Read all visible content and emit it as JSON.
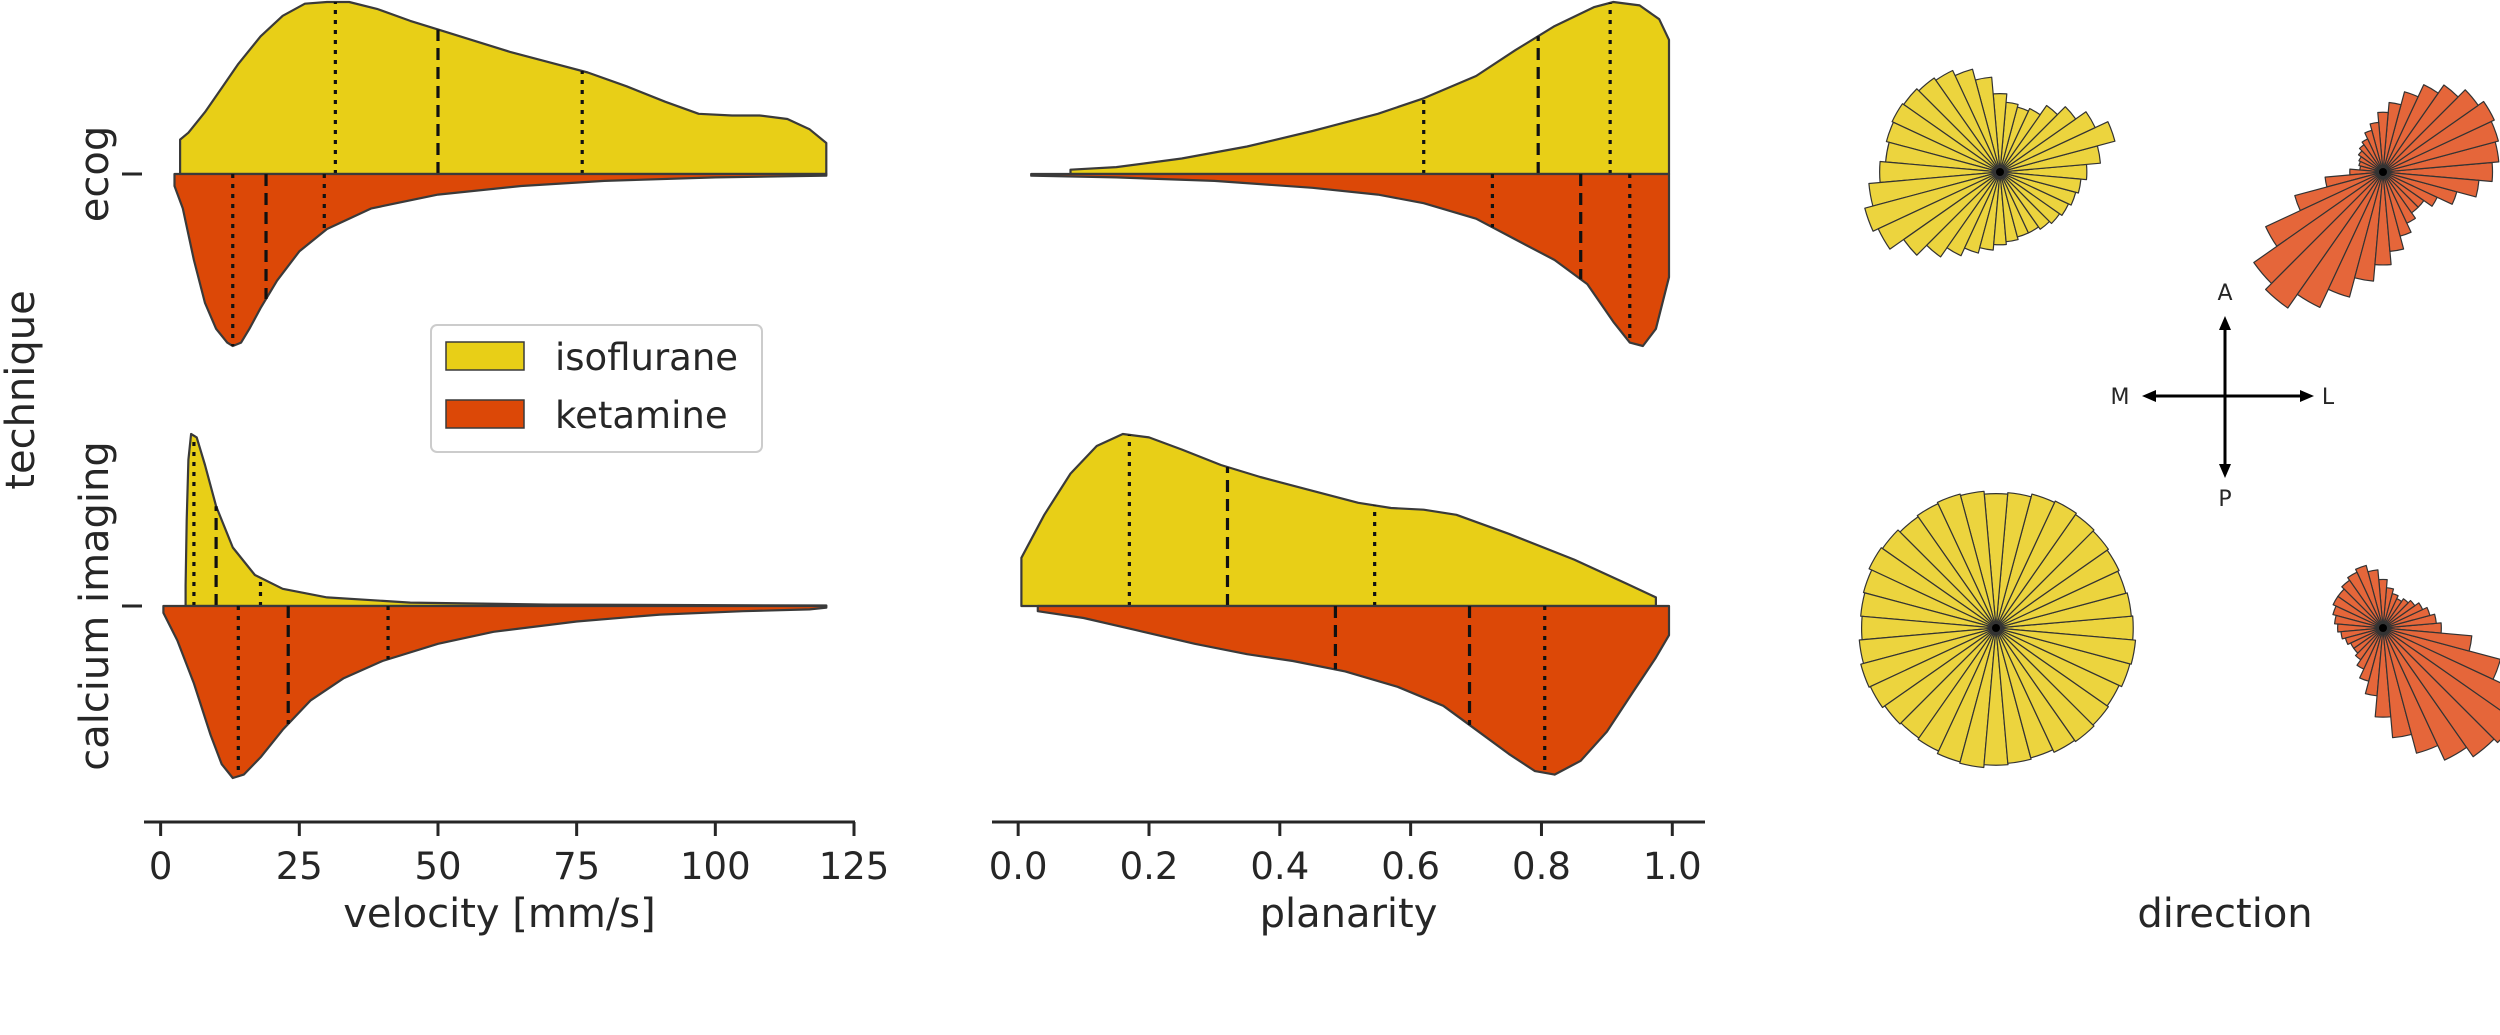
{
  "colors": {
    "isoflurane": "#e8cf17",
    "ketamine": "#dc4807",
    "isoflurane_rose": "#ecd43e",
    "ketamine_rose": "#e5663a",
    "outline": "#3a3a3a",
    "axis": "#262626"
  },
  "y_axis": {
    "label": "technique",
    "categories": [
      "ecog",
      "calcium imaging"
    ]
  },
  "legend": {
    "placement": "center-left of first panel",
    "entries": [
      {
        "key": "isoflurane",
        "label": "isoflurane"
      },
      {
        "key": "ketamine",
        "label": "ketamine"
      }
    ]
  },
  "direction_panel": {
    "xlabel": "direction",
    "compass": {
      "anterior": "A",
      "posterior": "P",
      "medial": "M",
      "lateral": "L"
    }
  },
  "chart_data": [
    {
      "type": "violin",
      "subtype": "split",
      "xlabel": "velocity [mm/s]",
      "xlim": [
        -3,
        125
      ],
      "xticks": [
        0,
        25,
        50,
        75,
        100,
        125
      ],
      "xticklabels": [
        "0",
        "25",
        "50",
        "75",
        "100",
        "125"
      ],
      "rows": [
        {
          "category": "ecog",
          "isoflurane": {
            "density": [
              [
                3.5,
                0
              ],
              [
                3.5,
                0.2
              ],
              [
                5,
                0.24
              ],
              [
                8,
                0.36
              ],
              [
                11,
                0.5
              ],
              [
                14,
                0.64
              ],
              [
                18,
                0.8
              ],
              [
                22,
                0.92
              ],
              [
                26,
                0.99
              ],
              [
                30,
                1.0
              ],
              [
                34,
                1.0
              ],
              [
                39,
                0.96
              ],
              [
                45,
                0.89
              ],
              [
                51,
                0.83
              ],
              [
                57,
                0.77
              ],
              [
                63,
                0.71
              ],
              [
                70,
                0.65
              ],
              [
                77,
                0.59
              ],
              [
                84,
                0.51
              ],
              [
                91,
                0.42
              ],
              [
                97,
                0.35
              ],
              [
                103,
                0.34
              ],
              [
                108,
                0.34
              ],
              [
                113,
                0.32
              ],
              [
                117,
                0.26
              ],
              [
                120,
                0.18
              ],
              [
                120,
                0
              ]
            ],
            "quartiles": [
              [
                31.5,
                "dotted"
              ],
              [
                50,
                "dashed"
              ],
              [
                76,
                "dotted"
              ]
            ]
          },
          "ketamine": {
            "density": [
              [
                2.5,
                0
              ],
              [
                2.5,
                0.07
              ],
              [
                4,
                0.2
              ],
              [
                6,
                0.5
              ],
              [
                8,
                0.75
              ],
              [
                10,
                0.9
              ],
              [
                12,
                0.98
              ],
              [
                13,
                1.0
              ],
              [
                14.5,
                0.98
              ],
              [
                16,
                0.9
              ],
              [
                18,
                0.78
              ],
              [
                21,
                0.62
              ],
              [
                25,
                0.45
              ],
              [
                30,
                0.32
              ],
              [
                38,
                0.2
              ],
              [
                50,
                0.12
              ],
              [
                65,
                0.07
              ],
              [
                80,
                0.04
              ],
              [
                100,
                0.02
              ],
              [
                120,
                0.01
              ],
              [
                120,
                0
              ]
            ],
            "quartiles": [
              [
                13,
                "dotted"
              ],
              [
                19,
                "dashed"
              ],
              [
                29.5,
                "dotted"
              ]
            ]
          }
        },
        {
          "category": "calcium imaging",
          "isoflurane": {
            "density": [
              [
                4.5,
                0
              ],
              [
                4.5,
                0.12
              ],
              [
                4.7,
                0.5
              ],
              [
                5,
                0.85
              ],
              [
                5.5,
                1.0
              ],
              [
                6.5,
                0.98
              ],
              [
                8,
                0.82
              ],
              [
                10,
                0.58
              ],
              [
                13,
                0.34
              ],
              [
                17,
                0.18
              ],
              [
                22,
                0.1
              ],
              [
                30,
                0.05
              ],
              [
                45,
                0.02
              ],
              [
                70,
                0.008
              ],
              [
                120,
                0.003
              ],
              [
                120,
                0
              ]
            ],
            "quartiles": [
              [
                6,
                "dotted"
              ],
              [
                10,
                "dashed"
              ],
              [
                18,
                "dotted"
              ]
            ]
          },
          "ketamine": {
            "density": [
              [
                0.5,
                0
              ],
              [
                0.5,
                0.04
              ],
              [
                3,
                0.2
              ],
              [
                6,
                0.45
              ],
              [
                9,
                0.75
              ],
              [
                11,
                0.92
              ],
              [
                13,
                1.0
              ],
              [
                15,
                0.98
              ],
              [
                18,
                0.88
              ],
              [
                22,
                0.72
              ],
              [
                27,
                0.55
              ],
              [
                33,
                0.42
              ],
              [
                40,
                0.32
              ],
              [
                50,
                0.22
              ],
              [
                60,
                0.15
              ],
              [
                75,
                0.09
              ],
              [
                90,
                0.05
              ],
              [
                105,
                0.03
              ],
              [
                117,
                0.02
              ],
              [
                120,
                0.01
              ],
              [
                120,
                0
              ]
            ],
            "quartiles": [
              [
                14,
                "dotted"
              ],
              [
                23,
                "dashed"
              ],
              [
                41,
                "dotted"
              ]
            ]
          }
        }
      ]
    },
    {
      "type": "violin",
      "subtype": "split",
      "xlabel": "planarity",
      "xlim": [
        -0.04,
        1.05
      ],
      "xticks": [
        0.0,
        0.2,
        0.4,
        0.6,
        0.8,
        1.0
      ],
      "xticklabels": [
        "0.0",
        "0.2",
        "0.4",
        "0.6",
        "0.8",
        "1.0"
      ],
      "rows": [
        {
          "category": "ecog",
          "isoflurane": {
            "density": [
              [
                0.08,
                0
              ],
              [
                0.08,
                0.025
              ],
              [
                0.15,
                0.04
              ],
              [
                0.25,
                0.09
              ],
              [
                0.35,
                0.16
              ],
              [
                0.45,
                0.25
              ],
              [
                0.55,
                0.35
              ],
              [
                0.62,
                0.44
              ],
              [
                0.7,
                0.57
              ],
              [
                0.76,
                0.72
              ],
              [
                0.82,
                0.86
              ],
              [
                0.88,
                0.97
              ],
              [
                0.91,
                1.0
              ],
              [
                0.95,
                0.98
              ],
              [
                0.98,
                0.9
              ],
              [
                0.995,
                0.78
              ],
              [
                0.995,
                0
              ]
            ],
            "quartiles": [
              [
                0.62,
                "dotted"
              ],
              [
                0.795,
                "dashed"
              ],
              [
                0.905,
                "dotted"
              ]
            ]
          },
          "ketamine": {
            "density": [
              [
                0.02,
                0
              ],
              [
                0.02,
                0.01
              ],
              [
                0.15,
                0.02
              ],
              [
                0.3,
                0.04
              ],
              [
                0.45,
                0.08
              ],
              [
                0.55,
                0.12
              ],
              [
                0.62,
                0.17
              ],
              [
                0.7,
                0.26
              ],
              [
                0.76,
                0.38
              ],
              [
                0.82,
                0.5
              ],
              [
                0.87,
                0.64
              ],
              [
                0.91,
                0.86
              ],
              [
                0.935,
                0.98
              ],
              [
                0.955,
                1.0
              ],
              [
                0.975,
                0.9
              ],
              [
                0.995,
                0.6
              ],
              [
                0.995,
                0
              ]
            ],
            "quartiles": [
              [
                0.725,
                "dotted"
              ],
              [
                0.86,
                "dashed"
              ],
              [
                0.935,
                "dotted"
              ]
            ]
          }
        },
        {
          "category": "calcium imaging",
          "isoflurane": {
            "density": [
              [
                0.005,
                0
              ],
              [
                0.005,
                0.28
              ],
              [
                0.04,
                0.53
              ],
              [
                0.08,
                0.77
              ],
              [
                0.12,
                0.93
              ],
              [
                0.16,
                1.0
              ],
              [
                0.2,
                0.98
              ],
              [
                0.25,
                0.91
              ],
              [
                0.31,
                0.82
              ],
              [
                0.37,
                0.75
              ],
              [
                0.45,
                0.67
              ],
              [
                0.52,
                0.6
              ],
              [
                0.57,
                0.57
              ],
              [
                0.62,
                0.56
              ],
              [
                0.67,
                0.53
              ],
              [
                0.75,
                0.42
              ],
              [
                0.85,
                0.27
              ],
              [
                0.93,
                0.13
              ],
              [
                0.975,
                0.05
              ],
              [
                0.975,
                0
              ]
            ],
            "quartiles": [
              [
                0.17,
                "dotted"
              ],
              [
                0.32,
                "dashed"
              ],
              [
                0.545,
                "dotted"
              ]
            ]
          },
          "ketamine": {
            "density": [
              [
                0.03,
                0
              ],
              [
                0.03,
                0.03
              ],
              [
                0.1,
                0.07
              ],
              [
                0.18,
                0.14
              ],
              [
                0.27,
                0.22
              ],
              [
                0.35,
                0.28
              ],
              [
                0.42,
                0.32
              ],
              [
                0.5,
                0.38
              ],
              [
                0.58,
                0.47
              ],
              [
                0.65,
                0.58
              ],
              [
                0.7,
                0.72
              ],
              [
                0.75,
                0.86
              ],
              [
                0.79,
                0.96
              ],
              [
                0.82,
                0.98
              ],
              [
                0.86,
                0.9
              ],
              [
                0.9,
                0.73
              ],
              [
                0.94,
                0.5
              ],
              [
                0.975,
                0.3
              ],
              [
                0.995,
                0.17
              ],
              [
                0.995,
                0
              ]
            ],
            "quartiles": [
              [
                0.485,
                "dashed"
              ],
              [
                0.69,
                "dashed"
              ],
              [
                0.805,
                "dotted"
              ]
            ]
          }
        }
      ]
    },
    {
      "type": "polar_histogram",
      "xlabel": "direction",
      "roses": [
        {
          "row": "ecog",
          "condition": "isoflurane",
          "radii": [
            0.62,
            0.72,
            0.85,
            0.75,
            0.66,
            0.58,
            0.5,
            0.48,
            0.5,
            0.56,
            0.68,
            0.76,
            0.8,
            0.82,
            0.84,
            0.85,
            0.84,
            0.82,
            0.86,
            0.94,
            1.0,
            0.96,
            0.84,
            0.74,
            0.66,
            0.6,
            0.56,
            0.52,
            0.5,
            0.48,
            0.48,
            0.5,
            0.52,
            0.54,
            0.56,
            0.58
          ]
        },
        {
          "row": "ecog",
          "condition": "ketamine",
          "radii": [
            0.66,
            0.7,
            0.72,
            0.74,
            0.7,
            0.64,
            0.58,
            0.5,
            0.42,
            0.36,
            0.3,
            0.26,
            0.22,
            0.2,
            0.18,
            0.16,
            0.15,
            0.14,
            0.2,
            0.35,
            0.55,
            0.78,
            0.95,
            1.0,
            0.9,
            0.78,
            0.66,
            0.56,
            0.48,
            0.4,
            0.34,
            0.3,
            0.3,
            0.36,
            0.46,
            0.58
          ]
        },
        {
          "row": "calcium imaging",
          "condition": "isoflurane",
          "radii": [
            0.98,
            0.97,
            0.96,
            0.97,
            0.98,
            0.99,
            1.0,
            0.99,
            0.97,
            0.96,
            0.98,
            0.99,
            0.98,
            0.97,
            0.99,
            1.0,
            0.98,
            0.97,
            0.96,
            0.98,
            1.0,
            0.99,
            0.97,
            0.96,
            0.97,
            0.99,
            1.0,
            0.98,
            0.97,
            0.96,
            0.98,
            0.99,
            0.98,
            0.97,
            0.99,
            1.0
          ]
        },
        {
          "row": "calcium imaging",
          "condition": "ketamine",
          "radii": [
            0.36,
            0.33,
            0.3,
            0.27,
            0.24,
            0.22,
            0.2,
            0.22,
            0.25,
            0.3,
            0.36,
            0.4,
            0.38,
            0.36,
            0.34,
            0.34,
            0.32,
            0.3,
            0.28,
            0.26,
            0.24,
            0.22,
            0.22,
            0.24,
            0.28,
            0.34,
            0.42,
            0.55,
            0.68,
            0.8,
            0.9,
            0.97,
            1.0,
            0.92,
            0.75,
            0.55
          ]
        }
      ]
    }
  ]
}
